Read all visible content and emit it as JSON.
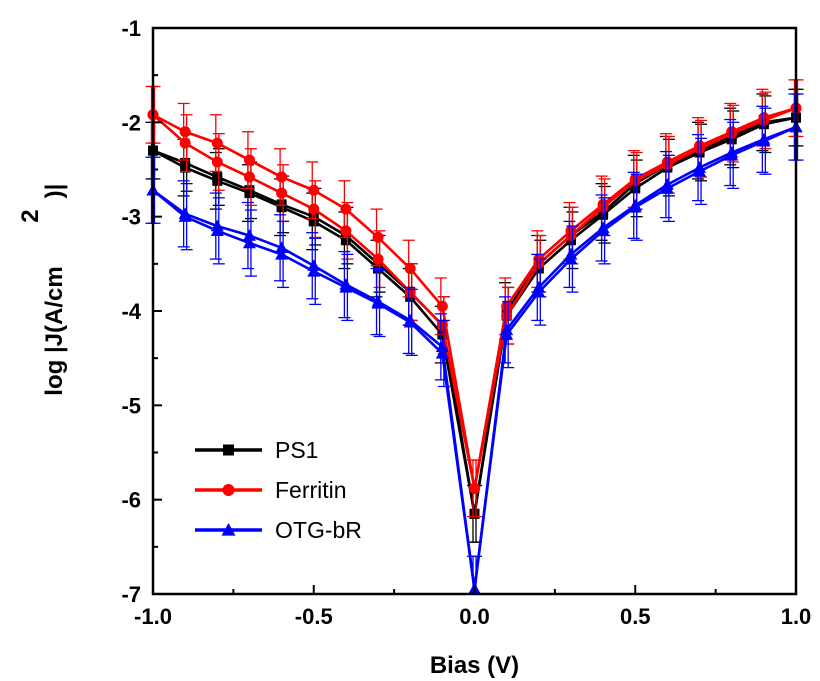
{
  "chart_data": {
    "type": "line",
    "xlabel": "Bias (V)",
    "ylabel_main": "log |J(A/cm",
    "ylabel_sup": "2",
    "ylabel_end": ")|",
    "xlim": [
      -1.0,
      1.0
    ],
    "ylim": [
      -7,
      -1
    ],
    "x_ticks": [
      -1.0,
      -0.5,
      0.0,
      0.5,
      1.0
    ],
    "x_tick_labels": [
      "-1.0",
      "-0.5",
      "0.0",
      "0.5",
      "1.0"
    ],
    "y_ticks": [
      -7,
      -6,
      -5,
      -4,
      -3,
      -2,
      -1
    ],
    "y_tick_labels": [
      "-7",
      "-6",
      "-5",
      "-4",
      "-3",
      "-2",
      "-1"
    ],
    "legend_position": "bottom-left",
    "series": [
      {
        "name": "PS1",
        "color": "#000000",
        "marker": "square",
        "x": [
          -1.0,
          -0.9,
          -0.8,
          -0.7,
          -0.6,
          -0.5,
          -0.4,
          -0.3,
          -0.2,
          -0.1,
          0.0,
          0.1,
          0.2,
          0.3,
          0.4,
          0.5,
          0.6,
          0.7,
          0.8,
          0.9,
          1.0
        ],
        "forward": [
          -2.3,
          -2.48,
          -2.62,
          -2.75,
          -2.9,
          -3.05,
          -3.25,
          -3.55,
          -3.85,
          -4.25,
          -6.15,
          -4.0,
          -3.5,
          -3.2,
          -2.95,
          -2.65,
          -2.45,
          -2.3,
          -2.15,
          -2.0,
          -1.95
        ],
        "reverse": [
          -2.3,
          -2.43,
          -2.58,
          -2.72,
          -2.87,
          -3.0,
          -3.2,
          -3.5,
          -3.8,
          -4.15,
          -6.15,
          -4.05,
          -3.55,
          -3.25,
          -2.98,
          -2.7,
          -2.48,
          -2.32,
          -2.18,
          -2.02,
          -1.95
        ],
        "error": 0.3
      },
      {
        "name": "Ferritin",
        "color": "#ff0000",
        "marker": "circle",
        "x": [
          -1.0,
          -0.9,
          -0.8,
          -0.7,
          -0.6,
          -0.5,
          -0.4,
          -0.3,
          -0.2,
          -0.1,
          0.0,
          0.1,
          0.2,
          0.3,
          0.4,
          0.5,
          0.6,
          0.7,
          0.8,
          0.9,
          1.0
        ],
        "forward": [
          -1.92,
          -2.1,
          -2.22,
          -2.4,
          -2.58,
          -2.72,
          -2.92,
          -3.22,
          -3.55,
          -3.95,
          -5.88,
          -3.95,
          -3.45,
          -3.15,
          -2.87,
          -2.6,
          -2.42,
          -2.25,
          -2.1,
          -1.95,
          -1.85
        ],
        "reverse": [
          -1.92,
          -2.22,
          -2.42,
          -2.58,
          -2.75,
          -2.92,
          -3.15,
          -3.45,
          -3.8,
          -4.15,
          -5.88,
          -4.05,
          -3.5,
          -3.2,
          -2.9,
          -2.62,
          -2.45,
          -2.28,
          -2.12,
          -1.98,
          -1.85
        ],
        "error": 0.3
      },
      {
        "name": "OTG-bR",
        "color": "#0000ff",
        "marker": "triangle",
        "x": [
          -1.0,
          -0.9,
          -0.8,
          -0.7,
          -0.6,
          -0.5,
          -0.4,
          -0.3,
          -0.2,
          -0.1,
          0.0,
          0.1,
          0.2,
          0.3,
          0.4,
          0.5,
          0.6,
          0.7,
          0.8,
          0.9,
          1.0
        ],
        "forward": [
          -2.72,
          -2.97,
          -3.1,
          -3.2,
          -3.33,
          -3.52,
          -3.72,
          -3.9,
          -4.1,
          -4.38,
          -6.95,
          -4.2,
          -3.75,
          -3.4,
          -3.12,
          -2.88,
          -2.66,
          -2.48,
          -2.32,
          -2.18,
          -2.05
        ],
        "reverse": [
          -2.72,
          -3.0,
          -3.15,
          -3.28,
          -3.4,
          -3.58,
          -3.75,
          -3.92,
          -4.12,
          -4.45,
          -6.95,
          -4.25,
          -3.8,
          -3.45,
          -3.15,
          -2.9,
          -2.7,
          -2.52,
          -2.35,
          -2.2,
          -2.05
        ],
        "error": 0.35
      }
    ]
  }
}
